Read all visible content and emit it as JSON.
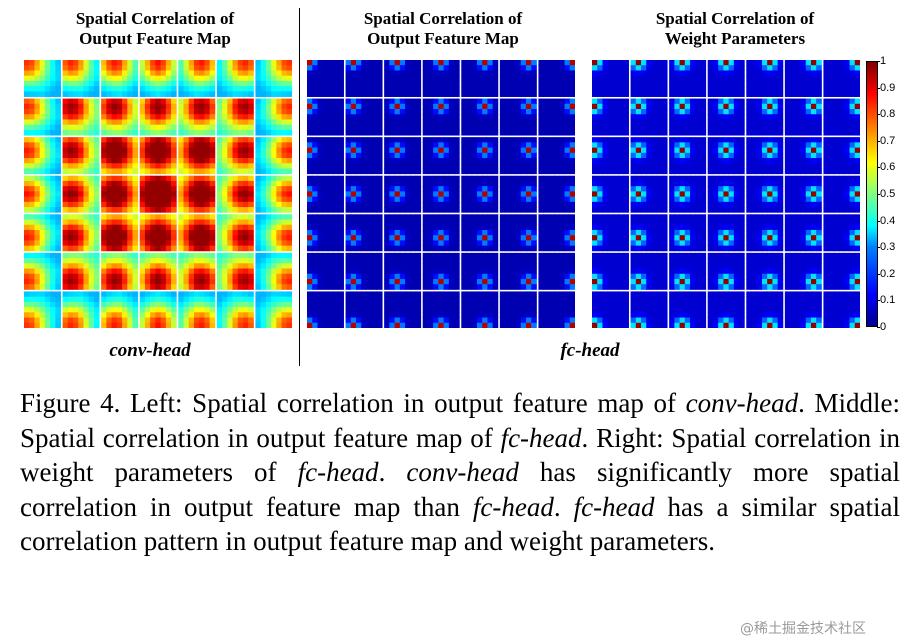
{
  "panels": [
    {
      "title_line1": "Spatial Correlation of",
      "title_line2": "Output Feature Map",
      "pattern": "conv"
    },
    {
      "title_line1": "Spatial Correlation of",
      "title_line2": "Output Feature Map",
      "pattern": "fc-feature"
    },
    {
      "title_line1": "Spatial Correlation of",
      "title_line2": "Weight Parameters",
      "pattern": "fc-weight"
    }
  ],
  "grid": {
    "cells": 7,
    "cell_resolution": 7,
    "separator_color": "#ffffff"
  },
  "colormap": "jet",
  "head_labels": {
    "left": "conv-head",
    "right": "fc-head"
  },
  "colorbar": {
    "min": 0,
    "max": 1,
    "ticks": [
      "1",
      "0.9",
      "0.8",
      "0.7",
      "0.6",
      "0.5",
      "0.4",
      "0.3",
      "0.2",
      "0.1",
      "0"
    ]
  },
  "caption": {
    "segments": [
      {
        "text": "Figure 4.  Left: Spatial correlation in output feature map of ",
        "italic": false
      },
      {
        "text": "conv-head",
        "italic": true
      },
      {
        "text": ". Middle: Spatial correlation in output feature map of ",
        "italic": false
      },
      {
        "text": "fc-head",
        "italic": true
      },
      {
        "text": ". Right: Spatial correlation in weight parameters of ",
        "italic": false
      },
      {
        "text": "fc-head",
        "italic": true
      },
      {
        "text": ". ",
        "italic": false
      },
      {
        "text": "conv-head",
        "italic": true
      },
      {
        "text": " has significantly more spatial correlation in output feature map than ",
        "italic": false
      },
      {
        "text": "fc-head",
        "italic": true
      },
      {
        "text": ". ",
        "italic": false
      },
      {
        "text": "fc-head",
        "italic": true
      },
      {
        "text": " has a similar spatial correlation pattern in output feature map and weight parameters.",
        "italic": false
      }
    ]
  },
  "watermark": "@稀土掘金技术社区"
}
